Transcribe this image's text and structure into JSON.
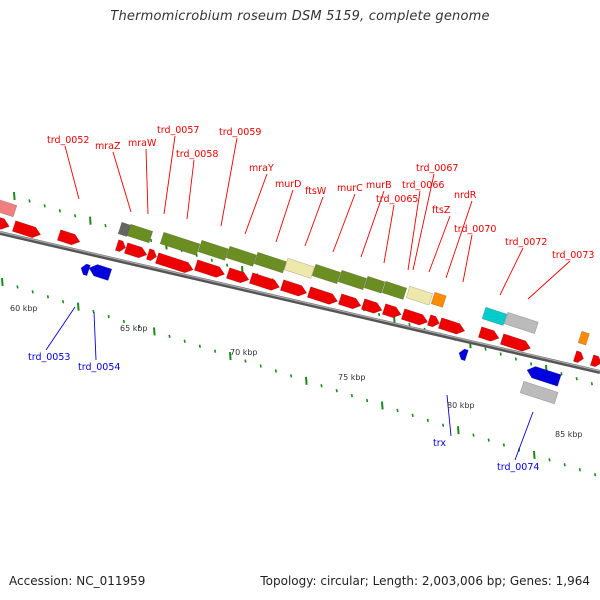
{
  "title": "Thermomicrobium roseum DSM 5159, complete genome",
  "accession_label": "Accession: NC_011959",
  "summary_label": "Topology: circular; Length: 2,003,006 bp; Genes: 1,964",
  "colors": {
    "forward": "#ee0000",
    "reverse": "#0000dd",
    "backbone": "#777777",
    "tick": "#1a8a1a",
    "olive": "#6b8e23",
    "khaki": "#eee8aa",
    "orange": "#ff8c00",
    "cyan": "#00cccc",
    "gray": "#bbbbbb",
    "darkgray": "#666666",
    "salmon": "#f08080"
  },
  "scale_labels": [
    "60 kbp",
    "65 kbp",
    "70 kbp",
    "75 kbp",
    "80 kbp",
    "85 kbp"
  ],
  "forward_labels": [
    "trd_0052",
    "mraZ",
    "mraW",
    "trd_0057",
    "trd_0058",
    "trd_0059",
    "mraY",
    "murD",
    "ftsW",
    "murC",
    "murB",
    "trd_0065",
    "trd_0066",
    "trd_0067",
    "ftsZ",
    "nrdR",
    "trd_0070",
    "trd_0072",
    "trd_0073"
  ],
  "reverse_labels": [
    "trd_0053",
    "trd_0054",
    "trx",
    "trd_0074"
  ]
}
